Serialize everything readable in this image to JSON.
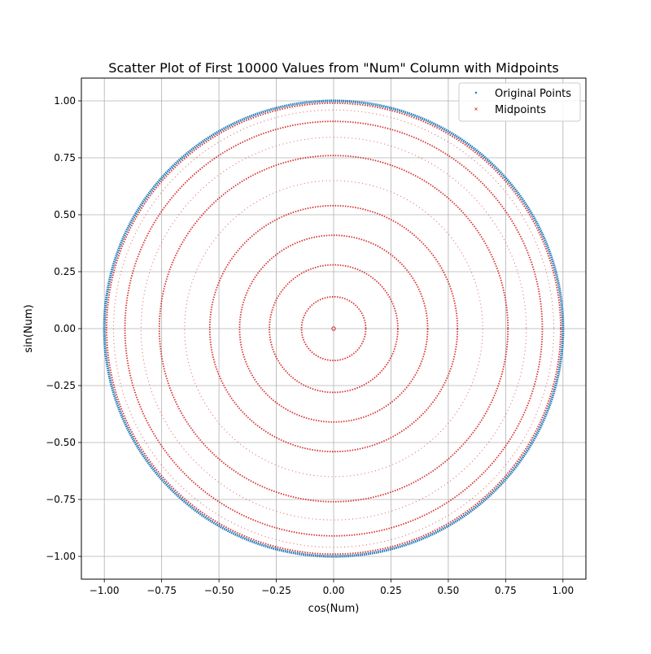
{
  "chart_data": {
    "type": "scatter",
    "title": "Scatter Plot of First 10000 Values from \"Num\" Column with Midpoints",
    "xlabel": "cos(Num)",
    "ylabel": "sin(Num)",
    "xlim": [
      -1.1,
      1.1
    ],
    "ylim": [
      -1.1,
      1.1
    ],
    "x_ticks": [
      -1.0,
      -0.75,
      -0.5,
      -0.25,
      0.0,
      0.25,
      0.5,
      0.75,
      1.0
    ],
    "y_ticks": [
      -1.0,
      -0.75,
      -0.5,
      -0.25,
      0.0,
      0.25,
      0.5,
      0.75,
      1.0
    ],
    "x_tick_labels": [
      "−1.00",
      "−0.75",
      "−0.50",
      "−0.25",
      "0.00",
      "0.25",
      "0.50",
      "0.75",
      "1.00"
    ],
    "y_tick_labels": [
      "−1.00",
      "−0.75",
      "−0.50",
      "−0.25",
      "0.00",
      "0.25",
      "0.50",
      "0.75",
      "1.00"
    ],
    "grid": true,
    "legend_position": "top-right",
    "series": [
      {
        "name": "Original Points",
        "color": "#1f77b4",
        "marker": "point",
        "description_shape": "unit circle",
        "radius": 1.0,
        "count": 10000
      },
      {
        "name": "Midpoints",
        "color": "#d62728",
        "marker": "x",
        "description_shape": "concentric rings",
        "ring_radii": [
          0.0,
          0.14,
          0.28,
          0.41,
          0.54,
          0.65,
          0.76,
          0.84,
          0.91,
          0.96,
          0.99
        ]
      }
    ]
  }
}
